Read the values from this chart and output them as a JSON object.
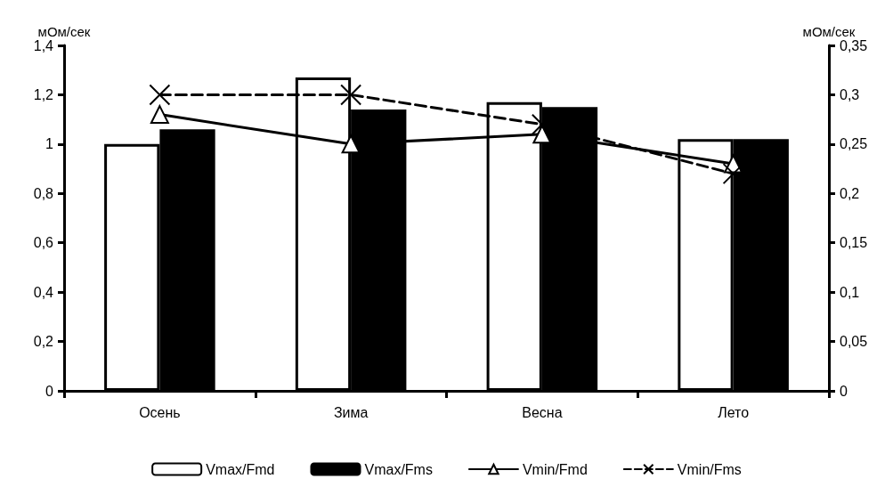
{
  "chart_data": {
    "type": "bar",
    "categories": [
      "Осень",
      "Зима",
      "Весна",
      "Лето"
    ],
    "ylabel": "мОм/сек",
    "y2label": "мОм/сек",
    "ylim": [
      0,
      1.4
    ],
    "yticks": [
      {
        "value": 0,
        "label": "0"
      },
      {
        "value": 0.2,
        "label": "0,2"
      },
      {
        "value": 0.4,
        "label": "0,4"
      },
      {
        "value": 0.6,
        "label": "0,6"
      },
      {
        "value": 0.8,
        "label": "0,8"
      },
      {
        "value": 1,
        "label": "1"
      },
      {
        "value": 1.2,
        "label": "1,2"
      },
      {
        "value": 1.4,
        "label": "1,4"
      }
    ],
    "y2lim": [
      0,
      0.35
    ],
    "y2ticks": [
      {
        "value": 0,
        "label": "0"
      },
      {
        "value": 0.05,
        "label": "0,05"
      },
      {
        "value": 0.1,
        "label": "0,1"
      },
      {
        "value": 0.15,
        "label": "0,15"
      },
      {
        "value": 0.2,
        "label": "0,2"
      },
      {
        "value": 0.25,
        "label": "0,25"
      },
      {
        "value": 0.3,
        "label": "0,3"
      },
      {
        "value": 0.35,
        "label": "0,35"
      }
    ],
    "grid": false,
    "legend": "bottom",
    "series": [
      {
        "name": "Vmax/Fmd",
        "color": "#ffffff",
        "values": [
          1.0,
          1.27,
          1.17,
          1.02
        ]
      },
      {
        "name": "Vmax/Fms",
        "color": "#000000",
        "values": [
          1.06,
          1.14,
          1.15,
          1.02
        ]
      },
      {
        "name": "Vmin/Fmd",
        "type": "line",
        "axis": "y2",
        "color": "#000000",
        "marker": "triangle",
        "line_style": "solid",
        "values": [
          0.28,
          0.25,
          0.26,
          0.23
        ]
      },
      {
        "name": "Vmin/Fms",
        "type": "line",
        "axis": "y2",
        "color": "#000000",
        "marker": "cross",
        "line_style": "dashed",
        "values": [
          0.3,
          0.3,
          0.27,
          0.22
        ]
      }
    ]
  }
}
